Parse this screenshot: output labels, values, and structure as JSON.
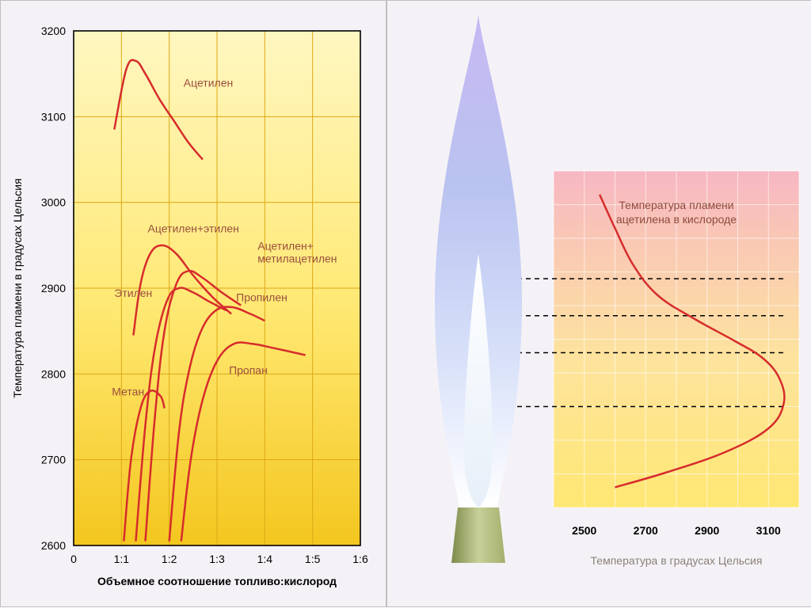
{
  "left_chart": {
    "type": "line",
    "title_y": "Температура пламени в градусах Цельсия",
    "title_x": "Объемное соотношение топливо:кислород",
    "y_fontsize": 14,
    "x_fontsize": 14,
    "plot_bg_stops": [
      "#fff7c2",
      "#ffe871",
      "#f4c61f"
    ],
    "grid_color": "#dca815",
    "axis_stroke": "#000000",
    "series_color": "#d62c2c",
    "series_width": 2.5,
    "label_color": "#9b4e3d",
    "label_fontsize": 14,
    "tick_fontsize": 14,
    "xlim": [
      0,
      6
    ],
    "xtick_positions": [
      0,
      1,
      2,
      3,
      4,
      5,
      6
    ],
    "xtick_labels": [
      "0",
      "1:1",
      "1:2",
      "1:3",
      "1:4",
      "1:5",
      "1:6"
    ],
    "ylim": [
      2600,
      3200
    ],
    "ytick_positions": [
      2600,
      2700,
      2800,
      2900,
      3000,
      3100,
      3200
    ],
    "ytick_labels": [
      "2600",
      "2700",
      "2800",
      "2900",
      "3000",
      "3100",
      "3200"
    ],
    "series": [
      {
        "name": "Ацетилен",
        "label": "Ацетилен",
        "label_xy": [
          2.3,
          3135
        ],
        "points": [
          [
            0.85,
            3085
          ],
          [
            1.1,
            3155
          ],
          [
            1.3,
            3165
          ],
          [
            1.5,
            3150
          ],
          [
            1.8,
            3120
          ],
          [
            2.1,
            3095
          ],
          [
            2.4,
            3070
          ],
          [
            2.7,
            3050
          ]
        ]
      },
      {
        "name": "Ацетилен+этилен",
        "label": "Ацетилен+этилен",
        "label_xy": [
          1.55,
          2965
        ],
        "points": [
          [
            1.25,
            2845
          ],
          [
            1.4,
            2905
          ],
          [
            1.6,
            2940
          ],
          [
            1.85,
            2950
          ],
          [
            2.15,
            2940
          ],
          [
            2.5,
            2915
          ],
          [
            2.9,
            2890
          ],
          [
            3.3,
            2870
          ]
        ]
      },
      {
        "name": "Ацетилен+метилацетилен",
        "label": "Ацетилен+\nметилацетилен",
        "label_xy": [
          3.85,
          2945
        ],
        "points": [
          [
            1.5,
            2605
          ],
          [
            1.7,
            2750
          ],
          [
            1.9,
            2850
          ],
          [
            2.15,
            2905
          ],
          [
            2.4,
            2920
          ],
          [
            2.7,
            2912
          ],
          [
            3.1,
            2895
          ],
          [
            3.5,
            2880
          ]
        ]
      },
      {
        "name": "Этилен",
        "label": "Этилен",
        "label_xy": [
          0.85,
          2890
        ],
        "points": [
          [
            1.3,
            2605
          ],
          [
            1.5,
            2740
          ],
          [
            1.7,
            2830
          ],
          [
            1.95,
            2885
          ],
          [
            2.2,
            2900
          ],
          [
            2.5,
            2895
          ],
          [
            2.85,
            2884
          ],
          [
            3.2,
            2874
          ]
        ]
      },
      {
        "name": "Пропилен",
        "label": "Пропилен",
        "label_xy": [
          3.4,
          2885
        ],
        "points": [
          [
            2.0,
            2605
          ],
          [
            2.2,
            2730
          ],
          [
            2.4,
            2800
          ],
          [
            2.65,
            2848
          ],
          [
            2.95,
            2873
          ],
          [
            3.3,
            2878
          ],
          [
            3.7,
            2870
          ],
          [
            4.0,
            2862
          ]
        ]
      },
      {
        "name": "Метан",
        "label": "Метан",
        "label_xy": [
          0.8,
          2775
        ],
        "points": [
          [
            1.05,
            2605
          ],
          [
            1.2,
            2700
          ],
          [
            1.4,
            2760
          ],
          [
            1.6,
            2780
          ],
          [
            1.82,
            2774
          ],
          [
            1.9,
            2760
          ]
        ]
      },
      {
        "name": "Пропан",
        "label": "Пропан",
        "label_xy": [
          3.25,
          2800
        ],
        "points": [
          [
            2.25,
            2605
          ],
          [
            2.45,
            2700
          ],
          [
            2.7,
            2770
          ],
          [
            3.0,
            2815
          ],
          [
            3.35,
            2835
          ],
          [
            3.75,
            2835
          ],
          [
            4.2,
            2830
          ],
          [
            4.85,
            2822
          ]
        ]
      }
    ]
  },
  "flame": {
    "outer_stops": [
      "#c7b8f3",
      "#b9c3f0",
      "#d8e1f9",
      "#ffffff"
    ],
    "inner_stops": [
      "#ffffff",
      "#e7eff9"
    ],
    "nozzle_colors": [
      "#7c8a4a",
      "#c7d09a",
      "#a4b06e"
    ]
  },
  "right_chart": {
    "type": "line",
    "title": "Температура пламени\nацетилена в кислороде",
    "title_fontsize": 14,
    "title_color": "#8f4a3b",
    "xlabel": "Температура в градусах Цельсия",
    "xlabel_fontsize": 14,
    "xlabel_color": "#8a817a",
    "bg_stops": [
      "#f7b7c3",
      "#fde39e",
      "#ffe773"
    ],
    "grid_color": "#ffffff",
    "grid_opacity": 0.6,
    "series_color": "#d62c2c",
    "series_width": 2.5,
    "xlim": [
      2400,
      3200
    ],
    "xtick_positions": [
      2500,
      2700,
      2900,
      3100
    ],
    "xtick_labels": [
      "2500",
      "2700",
      "2900",
      "3100"
    ],
    "ylim": [
      0,
      10
    ],
    "dash_y": [
      3.0,
      4.6,
      5.7,
      6.8
    ],
    "dash": "6,5",
    "curve": [
      [
        2550,
        9.3
      ],
      [
        2600,
        8.3
      ],
      [
        2660,
        7.2
      ],
      [
        2740,
        6.3
      ],
      [
        2860,
        5.6
      ],
      [
        2990,
        4.95
      ],
      [
        3080,
        4.45
      ],
      [
        3135,
        3.85
      ],
      [
        3150,
        3.1
      ],
      [
        3100,
        2.35
      ],
      [
        2960,
        1.65
      ],
      [
        2770,
        1.05
      ],
      [
        2600,
        0.6
      ]
    ]
  }
}
